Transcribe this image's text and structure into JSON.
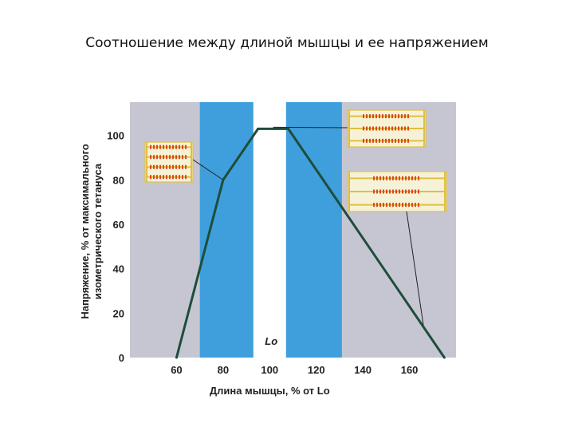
{
  "slide": {
    "title": "Соотношение между длиной мышцы и ее напряжением"
  },
  "chart_data": {
    "type": "line",
    "title": "Соотношение между длиной мышцы и ее напряжением",
    "xlabel": "Длина мышцы, % от Lo",
    "ylabel_line1": "Напряжение, % от максимального",
    "ylabel_line2": "изометрического тетануса",
    "xlim": [
      40,
      180
    ],
    "ylim": [
      0,
      115
    ],
    "x_ticks": [
      60,
      80,
      100,
      120,
      140,
      160
    ],
    "y_ticks": [
      0,
      20,
      40,
      60,
      80,
      100
    ],
    "series": [
      {
        "x": [
          60,
          80,
          95,
          108,
          175
        ],
        "y": [
          0,
          80,
          103,
          103,
          0
        ]
      }
    ],
    "shaded_bands_x": [
      [
        70,
        93
      ],
      [
        107,
        131
      ]
    ],
    "annotations": {
      "lo_marker_label": "Lo",
      "lo_marker_x": 100
    },
    "grid": false,
    "colors": {
      "plot_background": "#c6c6d2",
      "band": "#3e9fdc",
      "line": "#1f4d3a",
      "center_band": "#ffffff"
    }
  }
}
